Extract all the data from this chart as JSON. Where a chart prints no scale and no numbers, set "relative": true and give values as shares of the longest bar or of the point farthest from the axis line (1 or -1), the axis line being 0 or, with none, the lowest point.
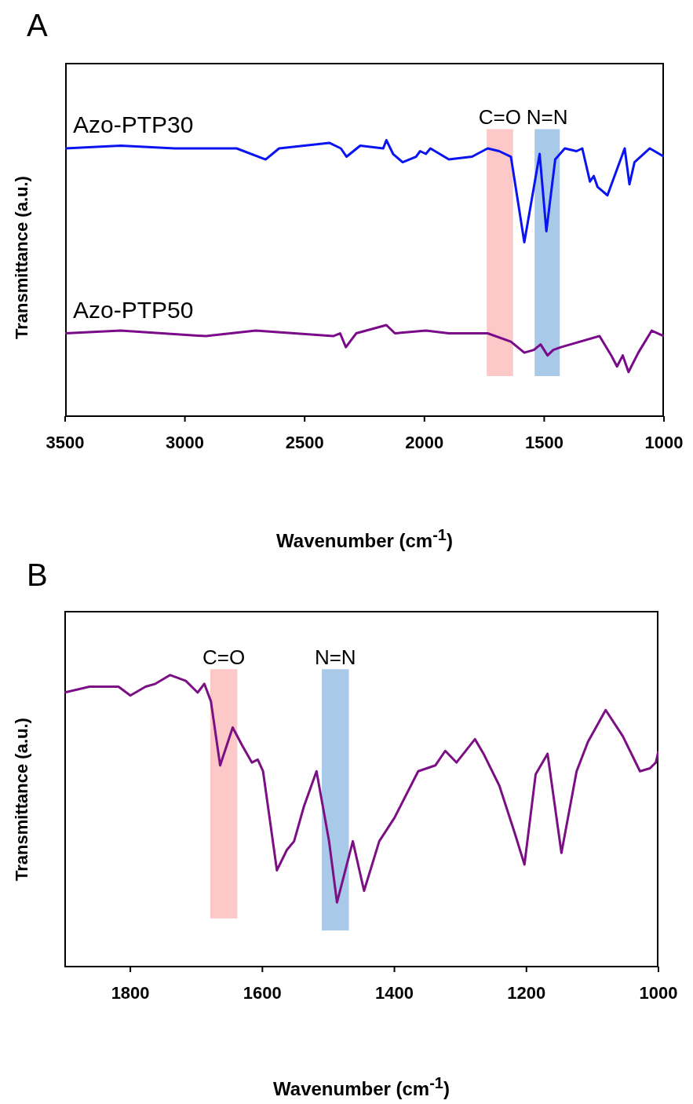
{
  "chart_data": [
    {
      "type": "line",
      "title": "A",
      "xlabel": "Wavenumber (cm$^{-1}$)",
      "ylabel": "Transmittance (a.u.)",
      "relative": true,
      "marker": "none",
      "xlim": [
        3500,
        1000
      ],
      "xticks": [
        3500,
        3000,
        2500,
        2000,
        1500,
        1000
      ],
      "series": [
        {
          "name": "Azo-PTP30",
          "color": "#0a14f0",
          "x": [
            3500,
            3268,
            3042,
            2784,
            2663,
            2607,
            2397,
            2349,
            2325,
            2268,
            2172,
            2159,
            2131,
            2091,
            2035,
            2018,
            1994,
            1975,
            1898,
            1801,
            1736,
            1688,
            1639,
            1583,
            1519,
            1491,
            1454,
            1414,
            1365,
            1341,
            1309,
            1293,
            1277,
            1236,
            1164,
            1144,
            1123,
            1059,
            1000
          ],
          "values": [
            0.97,
            0.98,
            0.97,
            0.97,
            0.93,
            0.97,
            0.99,
            0.97,
            0.94,
            0.98,
            0.97,
            1,
            0.95,
            0.92,
            0.94,
            0.96,
            0.95,
            0.97,
            0.93,
            0.94,
            0.97,
            0.96,
            0.94,
            0.63,
            0.95,
            0.67,
            0.93,
            0.97,
            0.96,
            0.97,
            0.85,
            0.87,
            0.83,
            0.8,
            0.97,
            0.84,
            0.92,
            0.97,
            0.94
          ]
        },
        {
          "name": "Azo-PTP50",
          "color": "#7a0a8a",
          "x": [
            3500,
            3268,
            2913,
            2704,
            2381,
            2352,
            2328,
            2285,
            2159,
            2123,
            1994,
            1898,
            1736,
            1639,
            1583,
            1543,
            1515,
            1486,
            1462,
            1430,
            1269,
            1220,
            1196,
            1172,
            1148,
            1107,
            1051,
            1000
          ],
          "values": [
            0.3,
            0.31,
            0.29,
            0.31,
            0.29,
            0.3,
            0.25,
            0.3,
            0.33,
            0.3,
            0.31,
            0.3,
            0.3,
            0.27,
            0.23,
            0.24,
            0.26,
            0.22,
            0.24,
            0.25,
            0.29,
            0.22,
            0.18,
            0.22,
            0.16,
            0.23,
            0.31,
            0.29
          ]
        }
      ],
      "bands": [
        {
          "axis": "x",
          "from": 1740,
          "to": 1630,
          "label": "C=O",
          "color": "#fcc8c8"
        },
        {
          "axis": "x",
          "from": 1540,
          "to": 1435,
          "label": "N=N",
          "color": "#a9c9e9"
        }
      ]
    },
    {
      "type": "line",
      "title": "B",
      "xlabel": "Wavenumber (cm$^{-1}$)",
      "ylabel": "Transmittance (a.u.)",
      "relative": true,
      "marker": "none",
      "xlim": [
        1900,
        1000
      ],
      "xticks": [
        1800,
        1600,
        1400,
        1200,
        1000
      ],
      "series": [
        {
          "color": "#7b0f84",
          "x": [
            1900,
            1862,
            1839,
            1818,
            1800,
            1777,
            1762,
            1740,
            1716,
            1698,
            1688,
            1678,
            1664,
            1645,
            1631,
            1616,
            1607,
            1599,
            1578,
            1563,
            1552,
            1537,
            1518,
            1499,
            1487,
            1463,
            1446,
            1423,
            1400,
            1364,
            1338,
            1323,
            1306,
            1278,
            1265,
            1241,
            1218,
            1203,
            1186,
            1168,
            1147,
            1124,
            1107,
            1080,
            1054,
            1028,
            1013,
            1004,
            1000
          ],
          "values": [
            0.94,
            0.96,
            0.96,
            0.96,
            0.93,
            0.96,
            0.97,
            1,
            0.98,
            0.94,
            0.97,
            0.91,
            0.69,
            0.82,
            0.76,
            0.7,
            0.71,
            0.67,
            0.33,
            0.4,
            0.43,
            0.55,
            0.67,
            0.43,
            0.22,
            0.43,
            0.26,
            0.43,
            0.51,
            0.67,
            0.69,
            0.74,
            0.7,
            0.78,
            0.73,
            0.62,
            0.46,
            0.35,
            0.66,
            0.73,
            0.39,
            0.67,
            0.77,
            0.88,
            0.79,
            0.67,
            0.68,
            0.7,
            0.74
          ]
        }
      ],
      "bands": [
        {
          "axis": "x",
          "from": 1679,
          "to": 1638,
          "label": "C=O",
          "color": "#fcc8c8"
        },
        {
          "axis": "x",
          "from": 1510,
          "to": 1469,
          "label": "N=N",
          "color": "#a9c9e9"
        }
      ]
    }
  ]
}
